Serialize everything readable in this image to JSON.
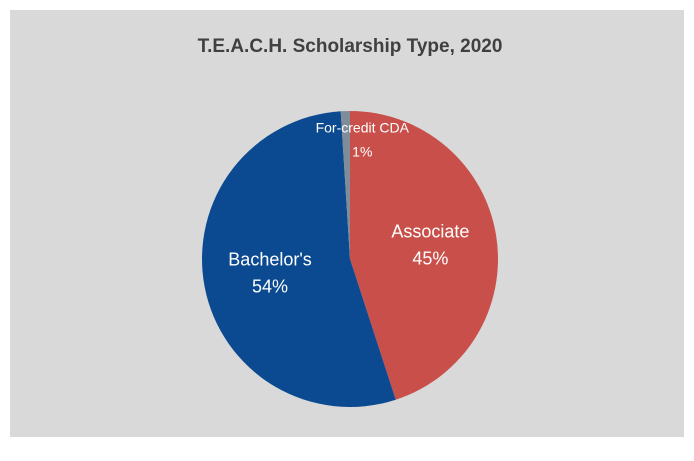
{
  "chart_data": {
    "type": "pie",
    "title": "T.E.A.C.H. Scholarship Type, 2020",
    "categories": [
      "Associate",
      "Bachelor's",
      "For-credit CDA"
    ],
    "values": [
      45,
      54,
      1
    ],
    "value_labels": [
      "45%",
      "54%",
      "1%"
    ],
    "colors": [
      "#c9504a",
      "#0b4a91",
      "#7f8c99"
    ]
  }
}
